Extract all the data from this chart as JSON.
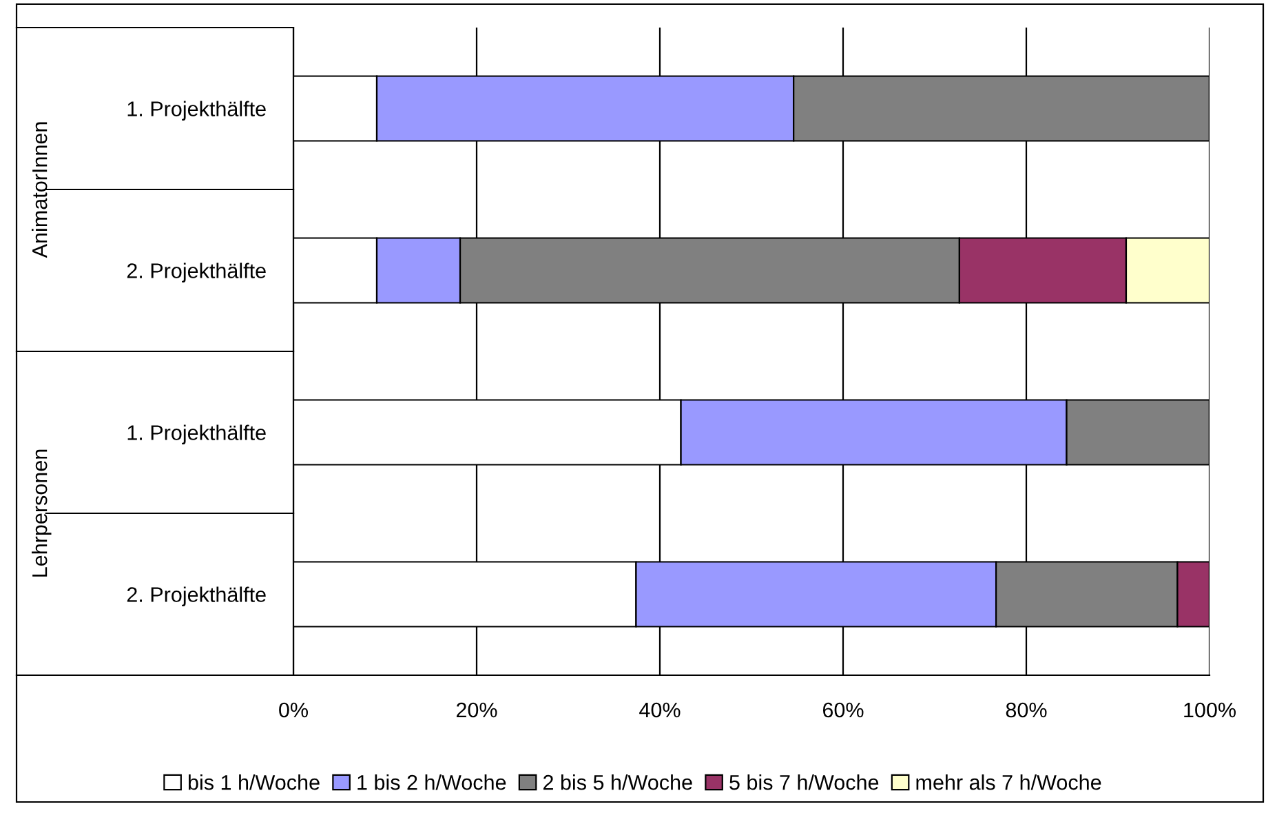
{
  "chart_data": {
    "type": "bar",
    "orientation": "horizontal",
    "stacked": true,
    "categories": [
      "1. Projekthälfte",
      "2. Projekthälfte",
      "1. Projekthälfte",
      "2. Projekthälfte"
    ],
    "annotations": [
      "AnimatorInnen",
      "Lehrpersonen"
    ],
    "series": [
      {
        "name": "bis 1 h/Woche",
        "color": "#ffffff",
        "values": [
          9.1,
          9.1,
          42.3,
          37.4
        ]
      },
      {
        "name": "1 bis 2 h/Woche",
        "color": "#9999ff",
        "values": [
          45.5,
          9.1,
          42.1,
          39.3
        ]
      },
      {
        "name": "2 bis 5 h/Woche",
        "color": "#808080",
        "values": [
          45.4,
          54.5,
          15.6,
          19.8
        ]
      },
      {
        "name": "5 bis 7 h/Woche",
        "color": "#993366",
        "values": [
          0,
          18.2,
          0,
          3.5
        ]
      },
      {
        "name": "mehr als 7 h/Woche",
        "color": "#ffffcc",
        "values": [
          0,
          9.1,
          0,
          0
        ]
      }
    ],
    "xlim": [
      0,
      100
    ],
    "xticks": [
      {
        "value": 0,
        "label": "0%"
      },
      {
        "value": 20,
        "label": "20%"
      },
      {
        "value": 40,
        "label": "40%"
      },
      {
        "value": 60,
        "label": "60%"
      },
      {
        "value": 80,
        "label": "80%"
      },
      {
        "value": 100,
        "label": "100%"
      }
    ],
    "grid": "x",
    "legend": "bottom"
  }
}
